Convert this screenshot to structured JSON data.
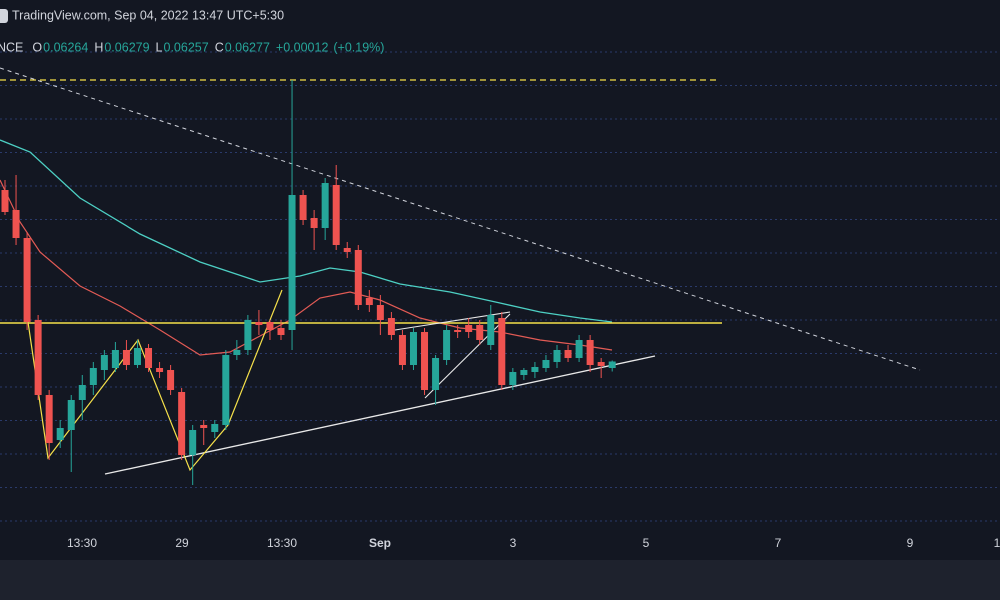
{
  "top_bar": {
    "text": "TradingView.com, Sep 04, 2022 13:47 UTC+5:30"
  },
  "header": {
    "symbol": "NCE",
    "ohlc_labels": [
      "O",
      "H",
      "L",
      "C"
    ],
    "change": "+0.00012",
    "change_pct": "(+0.19%)"
  },
  "chart_data": {
    "type": "candlestick",
    "up_color": "#26a69a",
    "down_color": "#ef5350",
    "ylim": [
      0.0594,
      0.07
    ],
    "x_labels": [
      "13:30",
      "29",
      "13:30",
      "Sep",
      "3",
      "5",
      "7",
      "9",
      "1"
    ],
    "open": [
      0.0662,
      0.0658,
      0.06524,
      0.0636,
      0.0621,
      0.0612,
      0.0614,
      0.062,
      0.0623,
      0.0626,
      0.06264,
      0.063,
      0.0627,
      0.06304,
      0.06264,
      0.0626,
      0.06216,
      0.0609,
      0.0615,
      0.06136,
      0.0615,
      0.0629,
      0.063,
      0.06356,
      0.06356,
      0.06344,
      0.0634,
      0.0661,
      0.06564,
      0.06544,
      0.0663,
      0.06504,
      0.065,
      0.06404,
      0.0639,
      0.06364,
      0.0633,
      0.0627,
      0.06336,
      0.0622,
      0.0628,
      0.0634,
      0.0635,
      0.0635,
      0.0631,
      0.06364,
      0.0623,
      0.0625,
      0.06256,
      0.06264,
      0.06276,
      0.063,
      0.06284,
      0.0632,
      0.06276,
      0.06264
    ],
    "high": [
      0.0664,
      0.0665,
      0.06536,
      0.0637,
      0.0622,
      0.0616,
      0.0621,
      0.0625,
      0.06276,
      0.063,
      0.06316,
      0.0632,
      0.0632,
      0.06312,
      0.06276,
      0.0627,
      0.06224,
      0.0615,
      0.0616,
      0.0616,
      0.063,
      0.0632,
      0.0637,
      0.0638,
      0.0636,
      0.0636,
      0.0684,
      0.0662,
      0.0658,
      0.06644,
      0.0667,
      0.06516,
      0.0651,
      0.0642,
      0.0641,
      0.06376,
      0.0634,
      0.06344,
      0.06344,
      0.0629,
      0.0635,
      0.0635,
      0.06364,
      0.0636,
      0.0639,
      0.06376,
      0.06264,
      0.06264,
      0.06276,
      0.0629,
      0.0631,
      0.0631,
      0.0633,
      0.0633,
      0.06284,
      0.06279
    ],
    "low": [
      0.0657,
      0.0651,
      0.0634,
      0.062,
      0.0608,
      0.06104,
      0.06056,
      0.0616,
      0.0621,
      0.0624,
      0.06256,
      0.0626,
      0.06264,
      0.06256,
      0.06244,
      0.0621,
      0.0608,
      0.0603,
      0.0611,
      0.06124,
      0.0614,
      0.0628,
      0.0629,
      0.0633,
      0.0632,
      0.0632,
      0.063,
      0.0655,
      0.065,
      0.0652,
      0.065,
      0.06484,
      0.0638,
      0.06376,
      0.0633,
      0.0632,
      0.0626,
      0.0626,
      0.0621,
      0.0619,
      0.0627,
      0.06324,
      0.06324,
      0.0631,
      0.063,
      0.0622,
      0.0622,
      0.0624,
      0.06244,
      0.06256,
      0.06264,
      0.06276,
      0.06276,
      0.06256,
      0.06244,
      0.06257
    ],
    "close": [
      0.06576,
      0.06524,
      0.06356,
      0.0621,
      0.06114,
      0.06144,
      0.062,
      0.0623,
      0.06264,
      0.0629,
      0.063,
      0.0627,
      0.06304,
      0.06264,
      0.06256,
      0.0622,
      0.0609,
      0.0614,
      0.06144,
      0.06152,
      0.0629,
      0.063,
      0.0636,
      0.0635,
      0.0634,
      0.0633,
      0.0661,
      0.0656,
      0.06544,
      0.06634,
      0.0651,
      0.06496,
      0.0639,
      0.0639,
      0.0636,
      0.0633,
      0.0627,
      0.06336,
      0.0622,
      0.06284,
      0.0634,
      0.06336,
      0.06336,
      0.0632,
      0.0637,
      0.0623,
      0.06256,
      0.0626,
      0.06266,
      0.0628,
      0.063,
      0.06284,
      0.0632,
      0.0627,
      0.06268,
      0.06277
    ]
  }
}
